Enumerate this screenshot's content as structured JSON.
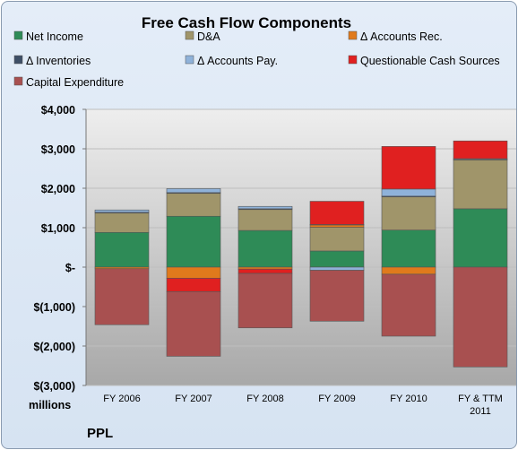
{
  "chart_data": {
    "type": "bar",
    "stacked": true,
    "title": "Free Cash Flow Components",
    "unit_label": "millions",
    "footer": "PPL",
    "legend_position": "top",
    "grid": true,
    "ylim": [
      -3000,
      4000
    ],
    "yticks": [
      4000,
      3000,
      2000,
      1000,
      0,
      -1000,
      -2000,
      -3000
    ],
    "ytick_labels": [
      "$4,000",
      "$3,000",
      "$2,000",
      "$1,000",
      "$-",
      "$(1,000)",
      "$(2,000)",
      "$(3,000)"
    ],
    "categories": [
      "FY 2006",
      "FY 2007",
      "FY 2008",
      "FY 2009",
      "FY 2010",
      "FY & TTM 2011"
    ],
    "series": [
      {
        "name": "Net Income",
        "color": "#2e8b57",
        "values": [
          880,
          1290,
          930,
          410,
          940,
          1480
        ]
      },
      {
        "name": "D&A",
        "color": "#a0956a",
        "values": [
          490,
          580,
          530,
          600,
          840,
          1240
        ]
      },
      {
        "name": "Δ Accounts Rec.",
        "color": "#e07a1c",
        "values": [
          -40,
          -280,
          -50,
          60,
          -180,
          0
        ]
      },
      {
        "name": "Δ Inventories",
        "color": "#3e4f66",
        "values": [
          20,
          20,
          20,
          10,
          20,
          10
        ]
      },
      {
        "name": "Δ Accounts Pay.",
        "color": "#8fb2d9",
        "values": [
          60,
          100,
          60,
          -80,
          180,
          20
        ]
      },
      {
        "name": "Questionable Cash Sources",
        "color": "#e02020",
        "values": [
          0,
          -340,
          -110,
          590,
          1080,
          450
        ]
      },
      {
        "name": "Capital Expenditure",
        "color": "#a85050",
        "values": [
          -1420,
          -1640,
          -1380,
          -1290,
          -1570,
          -2530
        ]
      }
    ]
  }
}
